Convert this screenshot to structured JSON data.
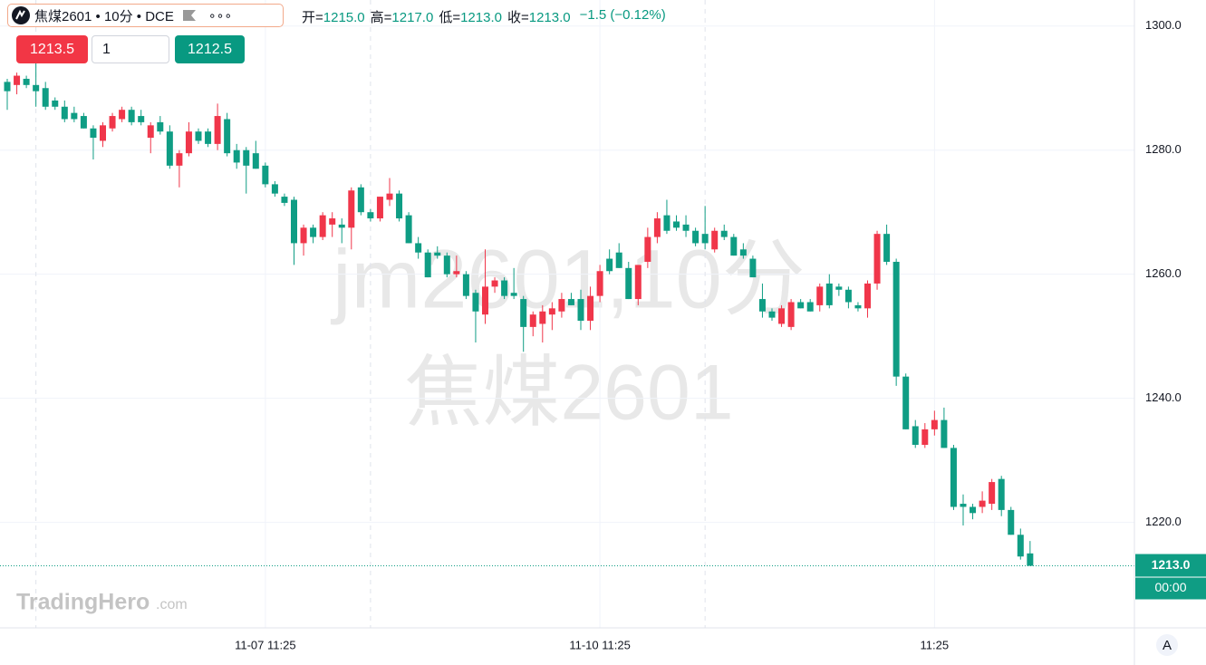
{
  "header": {
    "symbol": "焦煤2601 • 10分 • DCE",
    "menu": "∘∘∘",
    "ohlc": [
      {
        "label": "开=",
        "value": "1215.0"
      },
      {
        "label": "高=",
        "value": "1217.0"
      },
      {
        "label": "低=",
        "value": "1213.0"
      },
      {
        "label": "收=",
        "value": "1213.0"
      }
    ],
    "change": "−1.5 (−0.12%)"
  },
  "order": {
    "sell": "1213.5",
    "qty": "1",
    "buy": "1212.5"
  },
  "watermark": {
    "line1": "jm2601,10分",
    "line2": "焦煤2601"
  },
  "logo": {
    "name": "TradingHero",
    "suffix": ".com"
  },
  "scale_button": "A",
  "chart_data": {
    "type": "candlestick",
    "up_color": "#f0364a",
    "down_color": "#0f9d84",
    "categories": [
      null,
      null,
      null,
      null,
      null,
      null,
      null,
      null,
      null,
      null,
      null,
      null,
      null,
      null,
      null,
      null,
      null,
      null,
      null,
      null,
      null,
      null,
      null,
      null,
      null,
      null,
      null,
      "11-07 11:25",
      null,
      null,
      null,
      null,
      null,
      null,
      null,
      null,
      null,
      null,
      null,
      null,
      null,
      null,
      null,
      null,
      null,
      null,
      null,
      null,
      null,
      null,
      null,
      null,
      null,
      null,
      null,
      null,
      null,
      null,
      null,
      null,
      null,
      null,
      "11-10 11:25",
      null,
      null,
      null,
      null,
      null,
      null,
      null,
      null,
      null,
      null,
      null,
      null,
      null,
      null,
      null,
      null,
      null,
      null,
      null,
      null,
      null,
      null,
      null,
      null,
      null,
      null,
      null,
      null,
      null,
      null,
      null,
      null,
      null,
      null,
      "11:25",
      null,
      null,
      null,
      null,
      null,
      null,
      null,
      null,
      null,
      null
    ],
    "candles": [
      [
        1291,
        1291.5,
        1286.5,
        1289.5
      ],
      [
        1290.5,
        1292.5,
        1289,
        1292
      ],
      [
        1291.5,
        1292,
        1290,
        1290.5
      ],
      [
        1290.5,
        1295.5,
        1287,
        1289.5
      ],
      [
        1290,
        1291,
        1286.5,
        1287
      ],
      [
        1288,
        1288.5,
        1286.5,
        1287
      ],
      [
        1287,
        1288,
        1284.5,
        1285
      ],
      [
        1286,
        1287,
        1284.5,
        1285
      ],
      [
        1285.5,
        1286,
        1283.5,
        1283.5
      ],
      [
        1283.5,
        1284,
        1278.5,
        1282
      ],
      [
        1281.5,
        1284.5,
        1280.5,
        1284
      ],
      [
        1283.5,
        1286,
        1283,
        1285.5
      ],
      [
        1285,
        1287,
        1284.5,
        1286.5
      ],
      [
        1286.5,
        1287,
        1284,
        1284.5
      ],
      [
        1285.5,
        1286.5,
        1284,
        1284.5
      ],
      [
        1282,
        1284.5,
        1279.5,
        1284
      ],
      [
        1284.5,
        1285.5,
        1282.5,
        1283
      ],
      [
        1283,
        1284,
        1277,
        1277.5
      ],
      [
        1277.5,
        1280,
        1274,
        1279.5
      ],
      [
        1279.5,
        1284.5,
        1279,
        1283
      ],
      [
        1283,
        1283.5,
        1281,
        1281.5
      ],
      [
        1283,
        1283.5,
        1280.5,
        1281
      ],
      [
        1281,
        1287.5,
        1280,
        1285.5
      ],
      [
        1285,
        1286,
        1279,
        1279.5
      ],
      [
        1280,
        1281,
        1277,
        1278
      ],
      [
        1280,
        1280.5,
        1273,
        1277.5
      ],
      [
        1279.5,
        1281.5,
        1277,
        1277
      ],
      [
        1277.5,
        1278,
        1274,
        1274.5
      ],
      [
        1274.5,
        1275,
        1272.5,
        1273
      ],
      [
        1272.5,
        1273,
        1271,
        1271.5
      ],
      [
        1272,
        1272.5,
        1261.5,
        1265
      ],
      [
        1265,
        1268,
        1263,
        1267.5
      ],
      [
        1267.5,
        1268,
        1265,
        1266
      ],
      [
        1266,
        1270,
        1265.5,
        1269.5
      ],
      [
        1268,
        1270,
        1266,
        1269
      ],
      [
        1268,
        1269,
        1265,
        1267.5
      ],
      [
        1267.5,
        1274,
        1264,
        1273.5
      ],
      [
        1274,
        1274.5,
        1269.5,
        1270
      ],
      [
        1270,
        1270.5,
        1268.5,
        1269
      ],
      [
        1269,
        1272.5,
        1268.5,
        1272.5
      ],
      [
        1272,
        1275.5,
        1271,
        1273
      ],
      [
        1273,
        1273.5,
        1268.5,
        1269
      ],
      [
        1269.5,
        1270,
        1265,
        1265
      ],
      [
        1265,
        1266,
        1262.5,
        1263.5
      ],
      [
        1263.5,
        1264,
        1259.5,
        1259.5
      ],
      [
        1263.5,
        1264.5,
        1262.5,
        1263
      ],
      [
        1263,
        1263.5,
        1259.5,
        1260
      ],
      [
        1260,
        1263,
        1259.5,
        1260.5
      ],
      [
        1260,
        1260.5,
        1256,
        1256.5
      ],
      [
        1257,
        1257.5,
        1249,
        1254
      ],
      [
        1253.5,
        1264,
        1252,
        1258
      ],
      [
        1258,
        1259.5,
        1257,
        1259
      ],
      [
        1259,
        1259.5,
        1256,
        1256.5
      ],
      [
        1257,
        1261,
        1256,
        1256.5
      ],
      [
        1256,
        1256.5,
        1247.5,
        1251.5
      ],
      [
        1251.5,
        1254,
        1250,
        1253.5
      ],
      [
        1252,
        1255,
        1249,
        1254
      ],
      [
        1253.5,
        1255.5,
        1251,
        1254.5
      ],
      [
        1254,
        1257,
        1253,
        1256
      ],
      [
        1256,
        1257,
        1255,
        1255
      ],
      [
        1256,
        1257.5,
        1251,
        1252.5
      ],
      [
        1252.5,
        1258,
        1251,
        1256.5
      ],
      [
        1256.5,
        1261.5,
        1255.5,
        1260.5
      ],
      [
        1262.5,
        1264,
        1260,
        1260.5
      ],
      [
        1263.5,
        1265,
        1261,
        1261
      ],
      [
        1261,
        1262,
        1256,
        1256
      ],
      [
        1256,
        1261,
        1255,
        1261.5
      ],
      [
        1262,
        1267.5,
        1261,
        1266
      ],
      [
        1266,
        1270,
        1265,
        1269
      ],
      [
        1269.5,
        1272,
        1266.5,
        1267
      ],
      [
        1268.5,
        1269.5,
        1267,
        1267.5
      ],
      [
        1268,
        1269.5,
        1266,
        1267
      ],
      [
        1267,
        1267.5,
        1264.5,
        1265
      ],
      [
        1266.5,
        1271,
        1264,
        1265
      ],
      [
        1264,
        1267.5,
        1263.5,
        1267
      ],
      [
        1267,
        1268,
        1265.5,
        1266
      ],
      [
        1266,
        1266.5,
        1263,
        1263
      ],
      [
        1264,
        1265,
        1262.5,
        1263
      ],
      [
        1262.5,
        1263,
        1259.5,
        1259.5
      ],
      [
        1256,
        1258.5,
        1253,
        1254
      ],
      [
        1254,
        1254.5,
        1252.5,
        1253
      ],
      [
        1252,
        1255,
        1251.5,
        1254.5
      ],
      [
        1251.5,
        1256,
        1251,
        1255.5
      ],
      [
        1255.5,
        1256,
        1254.5,
        1254.5
      ],
      [
        1255.5,
        1256,
        1254,
        1254
      ],
      [
        1255,
        1258.5,
        1254,
        1258
      ],
      [
        1258.5,
        1260,
        1254.5,
        1255
      ],
      [
        1258,
        1258.5,
        1256.5,
        1257.5
      ],
      [
        1257.5,
        1258,
        1254.5,
        1255.5
      ],
      [
        1255,
        1255.5,
        1254,
        1254.5
      ],
      [
        1254.5,
        1259,
        1253,
        1258.5
      ],
      [
        1258.5,
        1267,
        1257.5,
        1266.5
      ],
      [
        1266.5,
        1268,
        1261.5,
        1262
      ],
      [
        1262,
        1262.5,
        1242,
        1243.5
      ],
      [
        1243.5,
        1244,
        1235,
        1235
      ],
      [
        1235.5,
        1236.5,
        1232,
        1232.5
      ],
      [
        1232.5,
        1236,
        1232,
        1235
      ],
      [
        1235,
        1238,
        1234,
        1236.5
      ],
      [
        1236.5,
        1238.5,
        1232,
        1232
      ],
      [
        1232,
        1232.5,
        1222,
        1222.5
      ],
      [
        1223,
        1224.5,
        1219.5,
        1222.5
      ],
      [
        1222.5,
        1223,
        1220.5,
        1221.5
      ],
      [
        1222.5,
        1225,
        1221.5,
        1223.5
      ],
      [
        1223,
        1227,
        1222,
        1226.5
      ],
      [
        1227,
        1227.5,
        1221,
        1222
      ],
      [
        1222,
        1222.5,
        1218,
        1218
      ],
      [
        1218,
        1219,
        1214,
        1214.5
      ],
      [
        1215,
        1217,
        1213,
        1213
      ]
    ],
    "ylim": [
      1203,
      1304.2
    ],
    "yticks": [
      {
        "value": 1220,
        "label": "1220.0"
      },
      {
        "value": 1240,
        "label": "1240.0"
      },
      {
        "value": 1260,
        "label": "1260.0"
      },
      {
        "value": 1280,
        "label": "1280.0"
      },
      {
        "value": 1300,
        "label": "1300.0"
      }
    ],
    "grid": true,
    "last_price": {
      "value": 1213,
      "label": "1213.0",
      "countdown": "00:00"
    }
  }
}
